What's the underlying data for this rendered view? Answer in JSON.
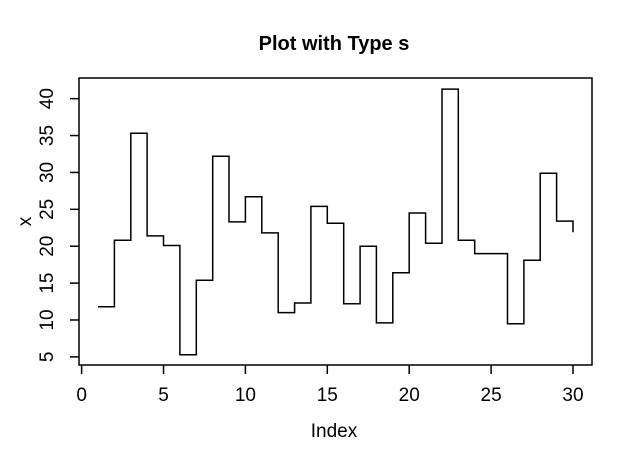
{
  "chart_data": {
    "type": "line",
    "subtype": "step",
    "step_type": "s",
    "title": "Plot with Type s",
    "xlabel": "Index",
    "ylabel": "x",
    "x": [
      1,
      2,
      3,
      4,
      5,
      6,
      7,
      8,
      9,
      10,
      11,
      12,
      13,
      14,
      15,
      16,
      17,
      18,
      19,
      20,
      21,
      22,
      23,
      24,
      25,
      26,
      27,
      28,
      29,
      30
    ],
    "values": [
      11.8,
      20.8,
      35.3,
      21.4,
      20.1,
      5.3,
      15.4,
      32.2,
      23.3,
      26.7,
      21.8,
      11.0,
      12.3,
      25.4,
      23.1,
      12.2,
      20.0,
      9.6,
      16.4,
      24.5,
      20.4,
      41.3,
      20.8,
      19.0,
      19.0,
      9.5,
      18.1,
      29.9,
      23.4,
      21.9
    ],
    "x_ticks": [
      0,
      5,
      10,
      15,
      20,
      25,
      30
    ],
    "y_ticks": [
      5,
      10,
      15,
      20,
      25,
      30,
      35,
      40
    ],
    "xlim": [
      -0.16,
      31.16
    ],
    "ylim": [
      3.9,
      42.8
    ],
    "grid": false,
    "legend": null,
    "line_color": "#000000",
    "axis_color": "#000000",
    "background": "#ffffff"
  }
}
